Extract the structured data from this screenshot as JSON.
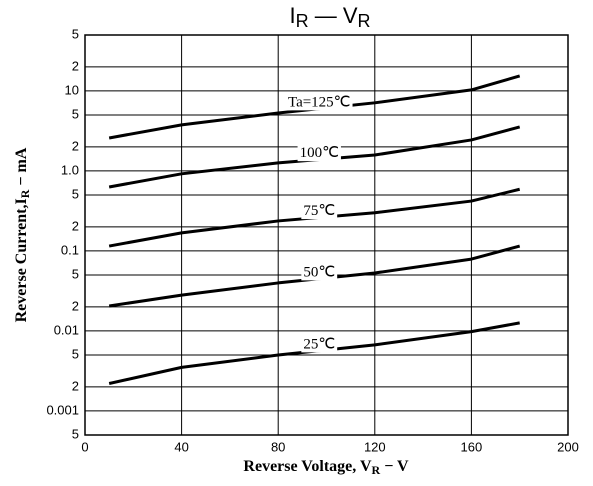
{
  "chart_data": {
    "type": "line",
    "title": [
      "I",
      "R",
      " — V",
      "R"
    ],
    "x_label": [
      "Reverse Voltage, V",
      "R",
      " − V"
    ],
    "y_label": [
      "Reverse Current,I",
      "R",
      " − mA"
    ],
    "x": [
      10,
      40,
      80,
      120,
      160,
      180
    ],
    "series": [
      {
        "name": "Ta=125℃",
        "color": "#000000",
        "values": [
          2.58,
          3.76,
          5.3,
          7.1,
          10.3,
          15.4
        ]
      },
      {
        "name": "100℃",
        "color": "#000000",
        "values": [
          0.63,
          0.92,
          1.26,
          1.58,
          2.44,
          3.55
        ]
      },
      {
        "name": "75℃",
        "color": "#000000",
        "values": [
          0.115,
          0.168,
          0.237,
          0.3,
          0.42,
          0.59
        ]
      },
      {
        "name": "50℃",
        "color": "#000000",
        "values": [
          0.0205,
          0.028,
          0.0398,
          0.053,
          0.079,
          0.115
        ]
      },
      {
        "name": "25℃",
        "color": "#000000",
        "values": [
          0.0022,
          0.0035,
          0.005,
          0.0067,
          0.0098,
          0.0126
        ]
      }
    ],
    "xlim": [
      0,
      200
    ],
    "xticks": [
      0,
      40,
      80,
      120,
      160,
      200
    ],
    "ylim": [
      0.0005,
      50
    ],
    "yscale": "log",
    "yticks": [
      {
        "value": 50,
        "label": "5"
      },
      {
        "value": 20,
        "label": "2"
      },
      10,
      5,
      2,
      {
        "value": 1,
        "label": "1.0"
      },
      {
        "value": 0.5,
        "label": "5"
      },
      {
        "value": 0.2,
        "label": "2"
      },
      0.1,
      {
        "value": 0.05,
        "label": "5"
      },
      {
        "value": 0.02,
        "label": "2"
      },
      0.01,
      {
        "value": 0.005,
        "label": "5"
      },
      {
        "value": 0.002,
        "label": "2"
      },
      0.001,
      {
        "value": 0.0005,
        "label": "5"
      }
    ],
    "grid": true
  }
}
